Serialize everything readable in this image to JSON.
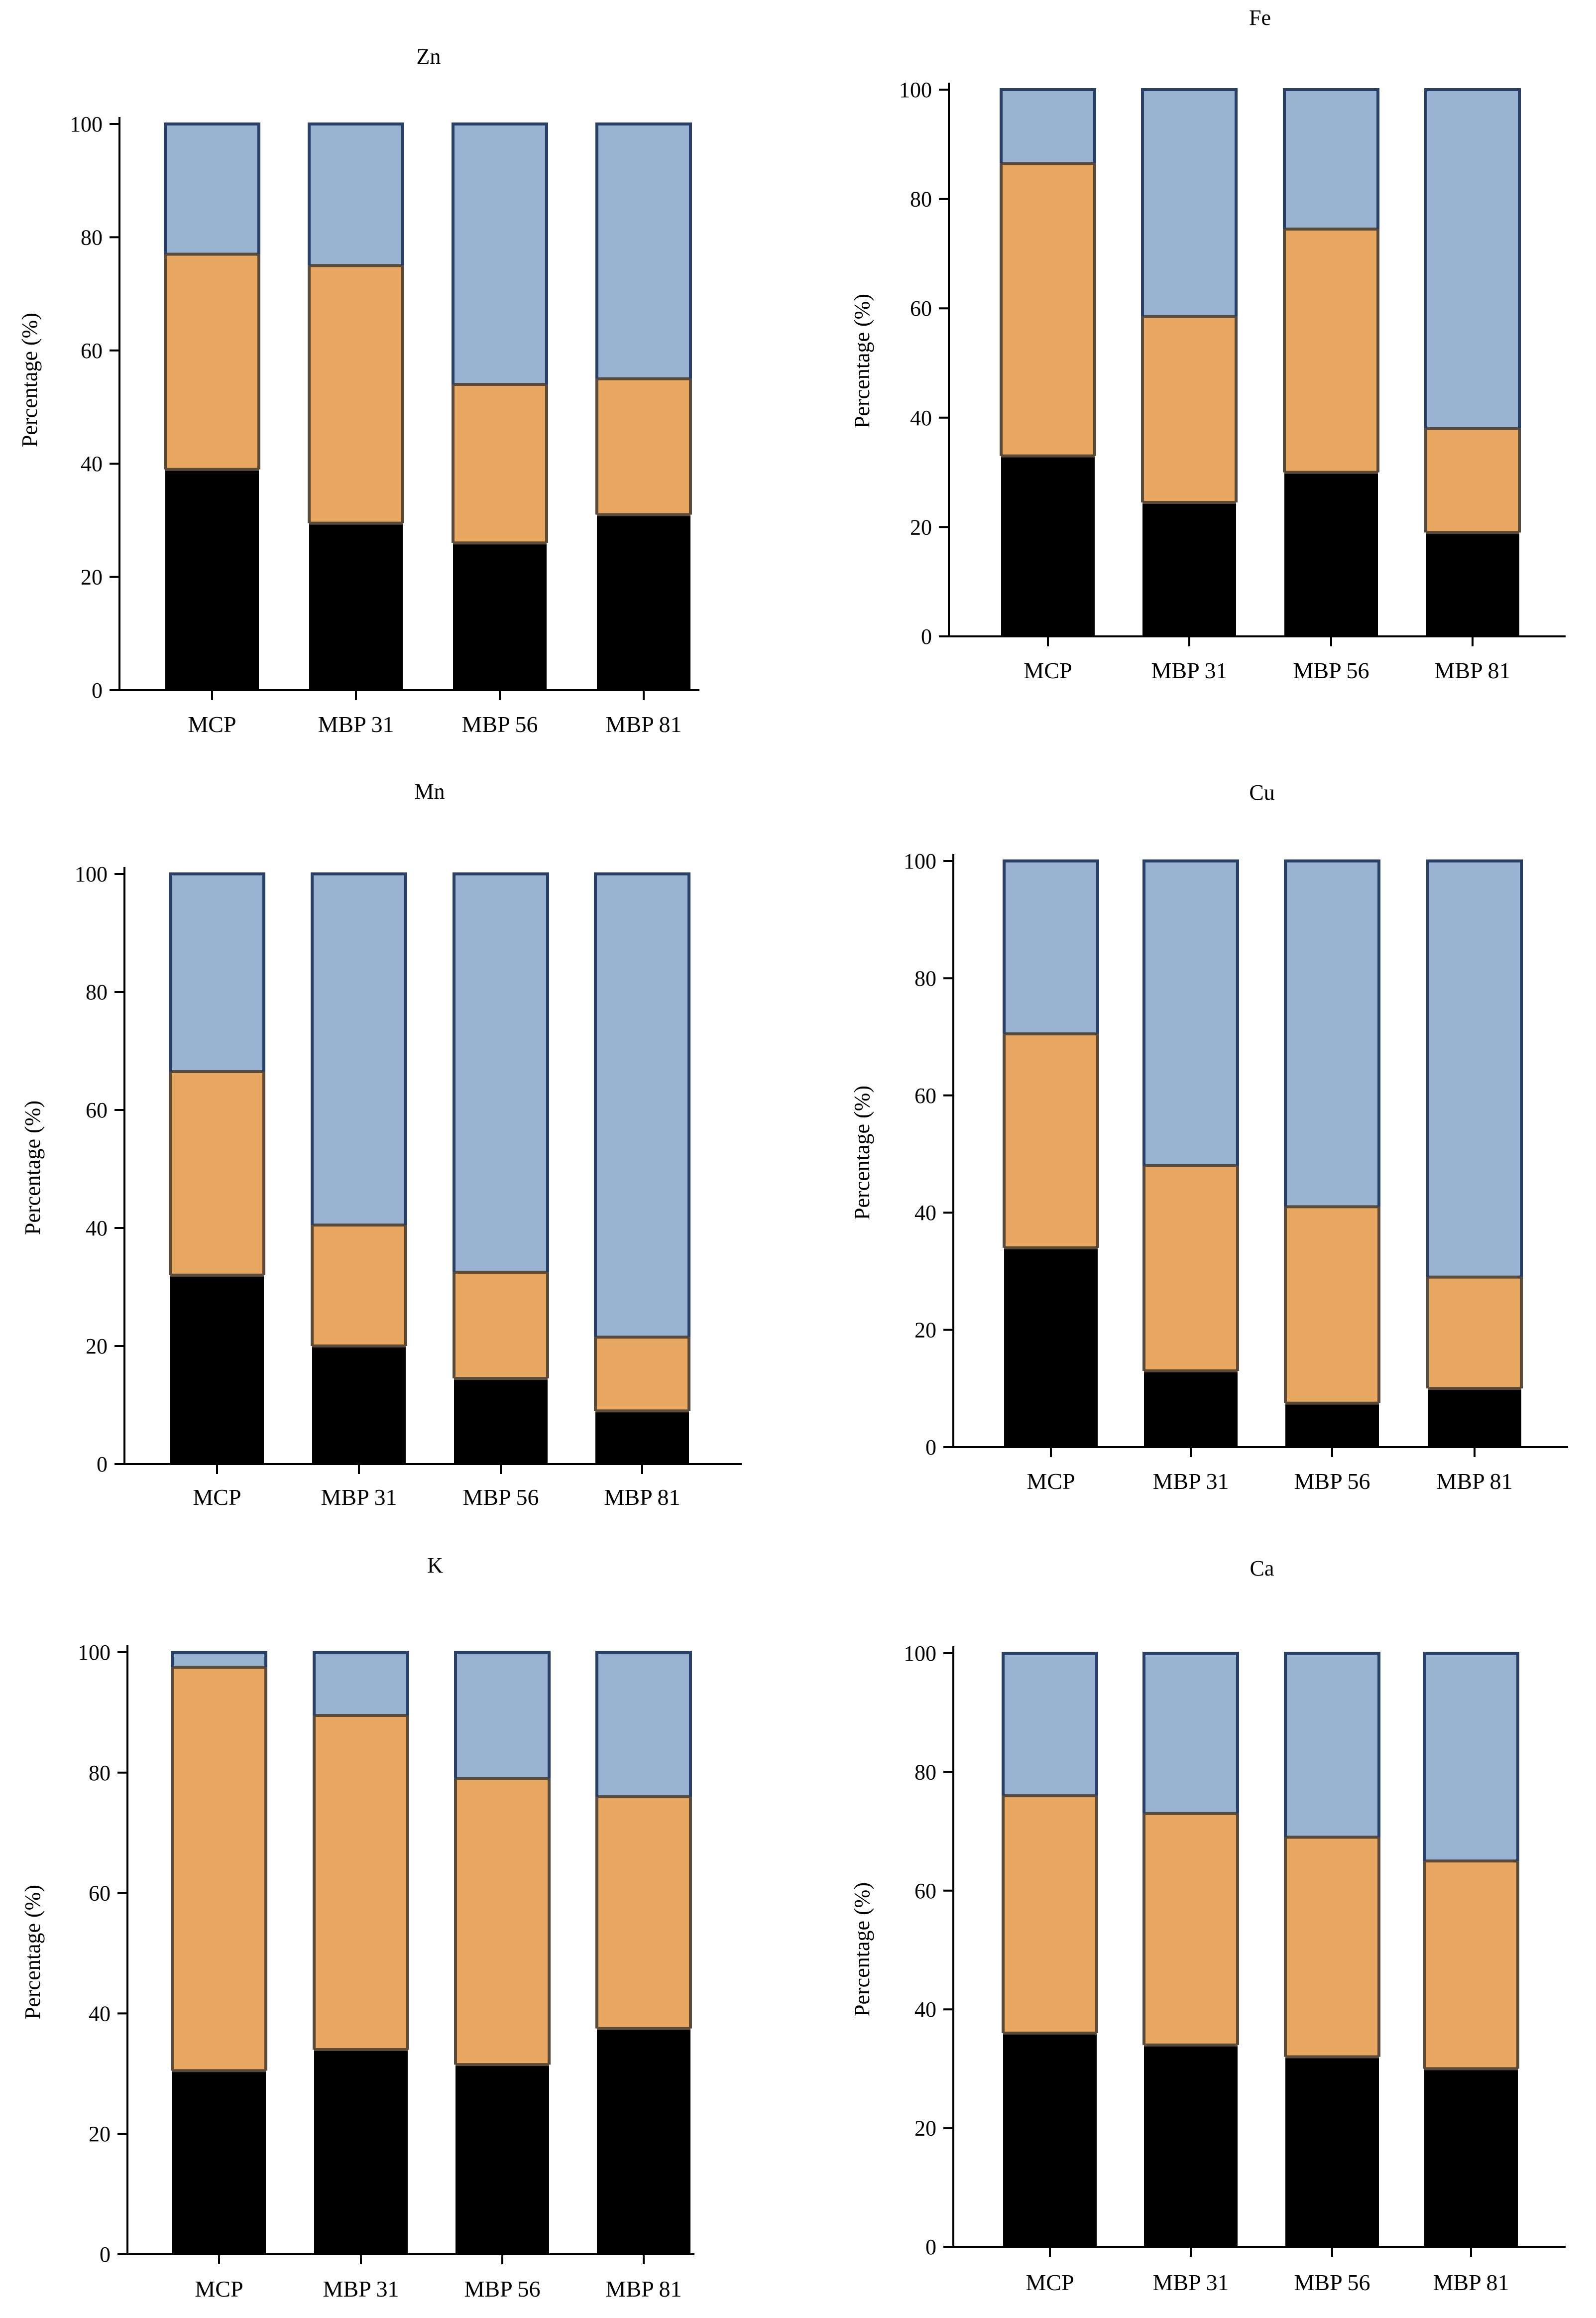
{
  "colors": {
    "bottom": "#000000",
    "middle": "#e8a862",
    "top": "#9bb3d2",
    "bar_outline": "#2a3f66",
    "segment_outline": "#5a4a3a",
    "axis": "#000000"
  },
  "chart_data": [
    {
      "type": "bar",
      "stacked": true,
      "title": "Zn",
      "ylabel": "Percentage (%)",
      "xlabel": "",
      "categories": [
        "MCP",
        "MBP 31",
        "MBP 56",
        "MBP 81"
      ],
      "yticks": [
        "0",
        "20",
        "40",
        "60",
        "80",
        "100"
      ],
      "ylim": [
        0,
        100
      ],
      "series": [
        {
          "values": [
            39,
            29.5,
            26,
            31
          ],
          "color_key": "bottom"
        },
        {
          "values": [
            38,
            45.5,
            28,
            24
          ],
          "color_key": "middle"
        },
        {
          "values": [
            23,
            25,
            46,
            45
          ],
          "color_key": "top"
        }
      ]
    },
    {
      "type": "bar",
      "stacked": true,
      "title": "Fe",
      "ylabel": "Percentage (%)",
      "xlabel": "",
      "categories": [
        "MCP",
        "MBP 31",
        "MBP 56",
        "MBP 81"
      ],
      "yticks": [
        "0",
        "20",
        "40",
        "60",
        "80",
        "100"
      ],
      "ylim": [
        0,
        100
      ],
      "series": [
        {
          "values": [
            33,
            24.5,
            30,
            19
          ],
          "color_key": "bottom"
        },
        {
          "values": [
            53.5,
            34,
            44.5,
            19
          ],
          "color_key": "middle"
        },
        {
          "values": [
            13.5,
            41.5,
            25.5,
            62
          ],
          "color_key": "top"
        }
      ]
    },
    {
      "type": "bar",
      "stacked": true,
      "title": "Mn",
      "ylabel": "Percentage (%)",
      "xlabel": "",
      "categories": [
        "MCP",
        "MBP 31",
        "MBP 56",
        "MBP 81"
      ],
      "yticks": [
        "0",
        "20",
        "40",
        "60",
        "80",
        "100"
      ],
      "ylim": [
        0,
        100
      ],
      "series": [
        {
          "values": [
            32,
            20,
            14.5,
            9
          ],
          "color_key": "bottom"
        },
        {
          "values": [
            34.5,
            20.5,
            18,
            12.5
          ],
          "color_key": "middle"
        },
        {
          "values": [
            33.5,
            59.5,
            67.5,
            78.5
          ],
          "color_key": "top"
        }
      ]
    },
    {
      "type": "bar",
      "stacked": true,
      "title": "Cu",
      "ylabel": "Percentage (%)",
      "xlabel": "",
      "categories": [
        "MCP",
        "MBP 31",
        "MBP 56",
        "MBP 81"
      ],
      "yticks": [
        "0",
        "20",
        "40",
        "60",
        "80",
        "100"
      ],
      "ylim": [
        0,
        100
      ],
      "series": [
        {
          "values": [
            34,
            13,
            7.5,
            10
          ],
          "color_key": "bottom"
        },
        {
          "values": [
            36.5,
            35,
            33.5,
            19
          ],
          "color_key": "middle"
        },
        {
          "values": [
            29.5,
            52,
            59,
            71
          ],
          "color_key": "top"
        }
      ]
    },
    {
      "type": "bar",
      "stacked": true,
      "title": "K",
      "ylabel": "Percentage (%)",
      "xlabel": "",
      "categories": [
        "MCP",
        "MBP 31",
        "MBP 56",
        "MBP 81"
      ],
      "yticks": [
        "0",
        "20",
        "40",
        "60",
        "80",
        "100"
      ],
      "ylim": [
        0,
        100
      ],
      "series": [
        {
          "values": [
            30.5,
            34,
            31.5,
            37.5
          ],
          "color_key": "bottom"
        },
        {
          "values": [
            67,
            55.5,
            47.5,
            38.5
          ],
          "color_key": "middle"
        },
        {
          "values": [
            2.5,
            10.5,
            21,
            24
          ],
          "color_key": "top"
        }
      ]
    },
    {
      "type": "bar",
      "stacked": true,
      "title": "Ca",
      "ylabel": "Percentage (%)",
      "xlabel": "",
      "categories": [
        "MCP",
        "MBP 31",
        "MBP 56",
        "MBP 81"
      ],
      "yticks": [
        "0",
        "20",
        "40",
        "60",
        "80",
        "100"
      ],
      "ylim": [
        0,
        100
      ],
      "series": [
        {
          "values": [
            36,
            34,
            32,
            30
          ],
          "color_key": "bottom"
        },
        {
          "values": [
            40,
            39,
            37,
            35
          ],
          "color_key": "middle"
        },
        {
          "values": [
            24,
            27,
            31,
            35
          ],
          "color_key": "top"
        }
      ]
    }
  ]
}
